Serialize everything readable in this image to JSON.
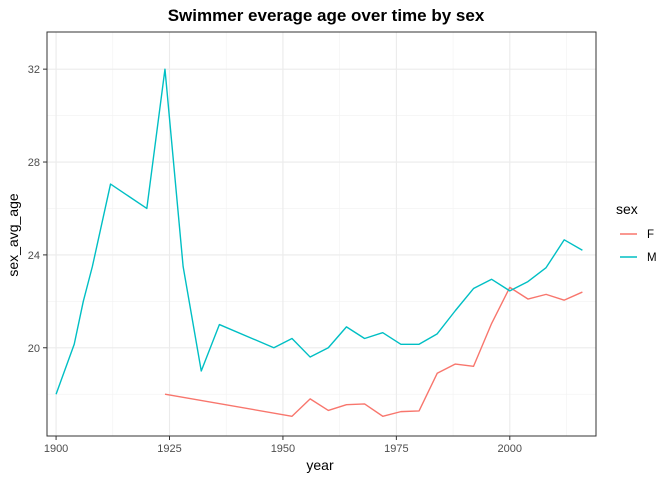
{
  "chart_data": {
    "type": "line",
    "title": "Swimmer everage age over time by sex",
    "xlabel": "year",
    "ylabel": "sex_avg_age",
    "xlim": [
      1898,
      2019
    ],
    "ylim": [
      16.2,
      33.6
    ],
    "x_ticks": [
      1900,
      1925,
      1950,
      1975,
      2000
    ],
    "y_ticks": [
      20,
      24,
      28,
      32
    ],
    "x_tick_labels": [
      "1900",
      "1925",
      "1950",
      "1975",
      "2000"
    ],
    "y_tick_labels": [
      "20",
      "24",
      "28",
      "32"
    ],
    "grid": true,
    "legend_title": "sex",
    "legend_position": "right",
    "series": [
      {
        "name": "F",
        "color": "#F8766D",
        "points": [
          [
            1924,
            18.0
          ],
          [
            1952,
            17.05
          ],
          [
            1956,
            17.8
          ],
          [
            1960,
            17.3
          ],
          [
            1964,
            17.55
          ],
          [
            1968,
            17.58
          ],
          [
            1972,
            17.05
          ],
          [
            1976,
            17.25
          ],
          [
            1980,
            17.28
          ],
          [
            1984,
            18.9
          ],
          [
            1988,
            19.3
          ],
          [
            1992,
            19.2
          ],
          [
            1996,
            21.05
          ],
          [
            2000,
            22.6
          ],
          [
            2004,
            22.1
          ],
          [
            2008,
            22.3
          ],
          [
            2012,
            22.05
          ],
          [
            2016,
            22.4
          ]
        ]
      },
      {
        "name": "M",
        "color": "#00BFC4",
        "points": [
          [
            1900,
            18.0
          ],
          [
            1904,
            20.15
          ],
          [
            1906,
            22.0
          ],
          [
            1908,
            23.5
          ],
          [
            1912,
            27.05
          ],
          [
            1920,
            26.0
          ],
          [
            1924,
            32.0
          ],
          [
            1928,
            23.5
          ],
          [
            1932,
            19.0
          ],
          [
            1936,
            21.0
          ],
          [
            1948,
            20.0
          ],
          [
            1952,
            20.4
          ],
          [
            1956,
            19.6
          ],
          [
            1960,
            20.0
          ],
          [
            1964,
            20.9
          ],
          [
            1968,
            20.4
          ],
          [
            1972,
            20.65
          ],
          [
            1976,
            20.15
          ],
          [
            1980,
            20.15
          ],
          [
            1984,
            20.6
          ],
          [
            1988,
            21.6
          ],
          [
            1992,
            22.55
          ],
          [
            1996,
            22.95
          ],
          [
            2000,
            22.45
          ],
          [
            2004,
            22.85
          ],
          [
            2008,
            23.45
          ],
          [
            2012,
            24.65
          ],
          [
            2016,
            24.2
          ]
        ]
      }
    ]
  }
}
